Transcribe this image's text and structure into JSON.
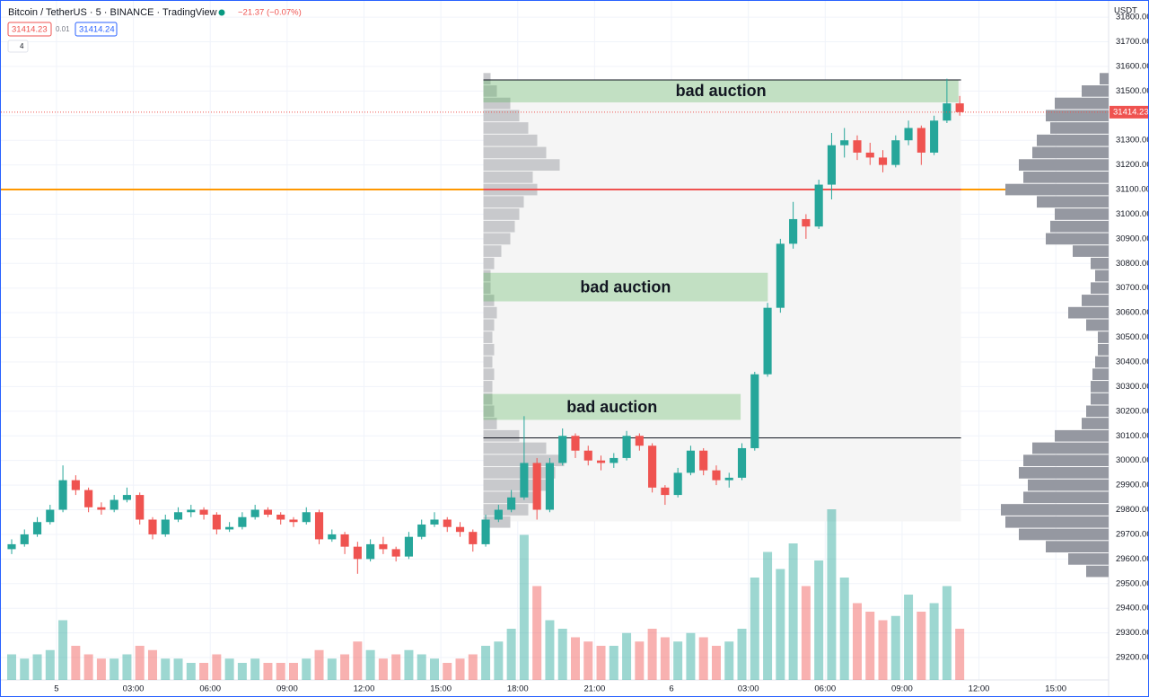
{
  "chart_data": {
    "type": "candlestick",
    "title": "Bitcoin / TetherUS · 5 · BINANCE · TradingView",
    "change": "−21.37 (−0.07%)",
    "bid": "31414.23",
    "spread": "0.01",
    "ask": "31414.24",
    "indicators": "4",
    "currency": "USDT",
    "last_price": 31414.23,
    "up_color": "#26a69a",
    "down_color": "#ef5350",
    "grid": true,
    "xlim": [
      -2.17,
      41.06
    ],
    "ylim": [
      29109,
      31866
    ],
    "xticks": [
      {
        "value": 0,
        "label": "5"
      },
      {
        "value": 3,
        "label": "03:00"
      },
      {
        "value": 6,
        "label": "06:00"
      },
      {
        "value": 9,
        "label": "09:00"
      },
      {
        "value": 12,
        "label": "12:00"
      },
      {
        "value": 15,
        "label": "15:00"
      },
      {
        "value": 18,
        "label": "18:00"
      },
      {
        "value": 21,
        "label": "21:00"
      },
      {
        "value": 24,
        "label": "6"
      },
      {
        "value": 27,
        "label": "03:00"
      },
      {
        "value": 30,
        "label": "06:00"
      },
      {
        "value": 33,
        "label": "09:00"
      },
      {
        "value": 36,
        "label": "12:00"
      },
      {
        "value": 39,
        "label": "15:00"
      }
    ],
    "yticks": [
      {
        "value": 29200,
        "label": "29200.00"
      },
      {
        "value": 29300,
        "label": "29300.00"
      },
      {
        "value": 29400,
        "label": "29400.00"
      },
      {
        "value": 29500,
        "label": "29500.00"
      },
      {
        "value": 29600,
        "label": "29600.00"
      },
      {
        "value": 29700,
        "label": "29700.00"
      },
      {
        "value": 29800,
        "label": "29800.00"
      },
      {
        "value": 29900,
        "label": "29900.00"
      },
      {
        "value": 30000,
        "label": "30000.00"
      },
      {
        "value": 30100,
        "label": "30100.00"
      },
      {
        "value": 30200,
        "label": "30200.00"
      },
      {
        "value": 30300,
        "label": "30300.00"
      },
      {
        "value": 30400,
        "label": "30400.00"
      },
      {
        "value": 30500,
        "label": "30500.00"
      },
      {
        "value": 30600,
        "label": "30600.00"
      },
      {
        "value": 30700,
        "label": "30700.00"
      },
      {
        "value": 30800,
        "label": "30800.00"
      },
      {
        "value": 30900,
        "label": "30900.00"
      },
      {
        "value": 31000,
        "label": "31000.00"
      },
      {
        "value": 31100,
        "label": "31100.00"
      },
      {
        "value": 31200,
        "label": "31200.00"
      },
      {
        "value": 31300,
        "label": "31300.00"
      },
      {
        "value": 31400,
        "label": "31400.00"
      },
      {
        "value": 31500,
        "label": "31500.00"
      },
      {
        "value": 31600,
        "label": "31600.00"
      },
      {
        "value": 31700,
        "label": "31700.00"
      },
      {
        "value": 31800,
        "label": "31800.00"
      }
    ],
    "x": [
      -1.75,
      -1.25,
      -0.75,
      -0.25,
      0.25,
      0.75,
      1.25,
      1.75,
      2.25,
      2.75,
      3.25,
      3.75,
      4.25,
      4.75,
      5.25,
      5.75,
      6.25,
      6.75,
      7.25,
      7.75,
      8.25,
      8.75,
      9.25,
      9.75,
      10.25,
      10.75,
      11.25,
      11.75,
      12.25,
      12.75,
      13.25,
      13.75,
      14.25,
      14.75,
      15.25,
      15.75,
      16.25,
      16.75,
      17.25,
      17.75,
      18.25,
      18.75,
      19.25,
      19.75,
      20.25,
      20.75,
      21.25,
      21.75,
      22.25,
      22.75,
      23.25,
      23.75,
      24.25,
      24.75,
      25.25,
      25.75,
      26.25,
      26.75,
      27.25,
      27.75,
      28.25,
      28.75,
      29.25,
      29.75,
      30.25,
      30.75,
      31.25,
      31.75,
      32.25,
      32.75,
      33.25,
      33.75,
      34.25,
      34.75,
      35.25
    ],
    "candles": [
      [
        29640,
        29680,
        29620,
        29660
      ],
      [
        29660,
        29720,
        29650,
        29700
      ],
      [
        29700,
        29770,
        29690,
        29750
      ],
      [
        29750,
        29820,
        29740,
        29800
      ],
      [
        29800,
        29980,
        29790,
        29920
      ],
      [
        29920,
        29940,
        29860,
        29880
      ],
      [
        29880,
        29890,
        29790,
        29810
      ],
      [
        29810,
        29830,
        29780,
        29800
      ],
      [
        29800,
        29860,
        29790,
        29840
      ],
      [
        29840,
        29890,
        29830,
        29860
      ],
      [
        29860,
        29870,
        29740,
        29760
      ],
      [
        29760,
        29770,
        29680,
        29700
      ],
      [
        29700,
        29780,
        29690,
        29760
      ],
      [
        29760,
        29810,
        29750,
        29790
      ],
      [
        29790,
        29820,
        29770,
        29800
      ],
      [
        29800,
        29810,
        29760,
        29780
      ],
      [
        29780,
        29790,
        29700,
        29720
      ],
      [
        29720,
        29750,
        29710,
        29730
      ],
      [
        29730,
        29790,
        29720,
        29770
      ],
      [
        29770,
        29820,
        29760,
        29800
      ],
      [
        29800,
        29810,
        29770,
        29780
      ],
      [
        29780,
        29790,
        29740,
        29760
      ],
      [
        29760,
        29770,
        29730,
        29750
      ],
      [
        29750,
        29810,
        29740,
        29790
      ],
      [
        29790,
        29800,
        29660,
        29680
      ],
      [
        29680,
        29720,
        29670,
        29700
      ],
      [
        29700,
        29710,
        29620,
        29650
      ],
      [
        29650,
        29670,
        29540,
        29600
      ],
      [
        29600,
        29680,
        29590,
        29660
      ],
      [
        29660,
        29690,
        29620,
        29640
      ],
      [
        29640,
        29650,
        29590,
        29610
      ],
      [
        29610,
        29710,
        29600,
        29690
      ],
      [
        29690,
        29760,
        29680,
        29740
      ],
      [
        29740,
        29790,
        29730,
        29760
      ],
      [
        29760,
        29770,
        29710,
        29730
      ],
      [
        29730,
        29750,
        29690,
        29710
      ],
      [
        29710,
        29720,
        29630,
        29660
      ],
      [
        29660,
        29780,
        29650,
        29760
      ],
      [
        29760,
        29820,
        29750,
        29800
      ],
      [
        29800,
        29880,
        29790,
        29850
      ],
      [
        29850,
        30180,
        29840,
        29990
      ],
      [
        29990,
        30010,
        29760,
        29800
      ],
      [
        29800,
        30010,
        29790,
        29990
      ],
      [
        29990,
        30130,
        29980,
        30100
      ],
      [
        30100,
        30110,
        30010,
        30040
      ],
      [
        30040,
        30060,
        29980,
        30000
      ],
      [
        30000,
        30020,
        29960,
        29990
      ],
      [
        29990,
        30030,
        29970,
        30010
      ],
      [
        30010,
        30120,
        30000,
        30100
      ],
      [
        30100,
        30110,
        30040,
        30060
      ],
      [
        30060,
        30070,
        29870,
        29890
      ],
      [
        29890,
        29900,
        29820,
        29860
      ],
      [
        29860,
        29970,
        29850,
        29950
      ],
      [
        29950,
        30060,
        29940,
        30040
      ],
      [
        30040,
        30050,
        29940,
        29960
      ],
      [
        29960,
        29980,
        29900,
        29920
      ],
      [
        29920,
        29950,
        29890,
        29930
      ],
      [
        29930,
        30070,
        29920,
        30050
      ],
      [
        30050,
        30360,
        30040,
        30350
      ],
      [
        30350,
        30640,
        30340,
        30620
      ],
      [
        30620,
        30900,
        30600,
        30880
      ],
      [
        30880,
        31050,
        30860,
        30980
      ],
      [
        30980,
        31000,
        30900,
        30950
      ],
      [
        30950,
        31140,
        30940,
        31120
      ],
      [
        31120,
        31330,
        31060,
        31280
      ],
      [
        31280,
        31350,
        31230,
        31300
      ],
      [
        31300,
        31320,
        31220,
        31250
      ],
      [
        31250,
        31290,
        31200,
        31230
      ],
      [
        31230,
        31260,
        31170,
        31200
      ],
      [
        31200,
        31320,
        31190,
        31300
      ],
      [
        31300,
        31380,
        31280,
        31350
      ],
      [
        31350,
        31360,
        31200,
        31250
      ],
      [
        31250,
        31400,
        31240,
        31380
      ],
      [
        31380,
        31550,
        31370,
        31450
      ],
      [
        31450,
        31480,
        31400,
        31414.23
      ]
    ],
    "volume": [
      30,
      25,
      30,
      35,
      70,
      40,
      30,
      25,
      25,
      30,
      40,
      35,
      25,
      25,
      20,
      20,
      30,
      25,
      20,
      25,
      20,
      20,
      20,
      25,
      35,
      25,
      30,
      45,
      35,
      25,
      30,
      35,
      30,
      25,
      20,
      25,
      30,
      40,
      45,
      60,
      170,
      110,
      70,
      60,
      50,
      45,
      40,
      40,
      55,
      45,
      60,
      50,
      45,
      55,
      50,
      40,
      45,
      60,
      120,
      150,
      130,
      160,
      110,
      140,
      200,
      120,
      90,
      80,
      70,
      75,
      100,
      80,
      90,
      110,
      60
    ],
    "profile": {
      "levels": [
        29550,
        29600,
        29650,
        29700,
        29750,
        29800,
        29850,
        29900,
        29950,
        30000,
        30050,
        30100,
        30150,
        30200,
        30250,
        30300,
        30350,
        30400,
        30450,
        30500,
        30550,
        30600,
        30650,
        30700,
        30750,
        30800,
        30850,
        30900,
        30950,
        31000,
        31050,
        31100,
        31150,
        31200,
        31250,
        31300,
        31350,
        31400,
        31450,
        31500,
        31550
      ],
      "volumes": [
        25,
        45,
        70,
        100,
        115,
        120,
        95,
        90,
        100,
        95,
        85,
        60,
        30,
        25,
        20,
        20,
        18,
        15,
        12,
        12,
        25,
        45,
        30,
        20,
        15,
        20,
        40,
        70,
        65,
        60,
        80,
        115,
        95,
        100,
        85,
        80,
        65,
        70,
        60,
        30,
        10
      ]
    },
    "range_profile": {
      "levels": [
        29750,
        29800,
        29850,
        29900,
        29950,
        30000,
        30050,
        30100,
        30150,
        30200,
        30250,
        30300,
        30350,
        30400,
        30450,
        30500,
        30550,
        30600,
        30650,
        30700,
        30750,
        30800,
        30850,
        30900,
        30950,
        31000,
        31050,
        31100,
        31150,
        31200,
        31250,
        31300,
        31350,
        31400,
        31450,
        31500,
        31550
      ],
      "volumes": [
        30,
        50,
        60,
        70,
        80,
        90,
        70,
        40,
        15,
        12,
        10,
        10,
        12,
        10,
        12,
        10,
        12,
        15,
        12,
        8,
        8,
        12,
        20,
        30,
        35,
        40,
        45,
        60,
        55,
        85,
        70,
        60,
        50,
        40,
        30,
        15,
        8
      ]
    },
    "range": {
      "x": [
        16.66,
        35.3
      ],
      "y": [
        29753,
        31545
      ]
    },
    "range_low_line": 30092,
    "level_line": {
      "value": 31100,
      "color": "#ff9800"
    },
    "annotations": [
      {
        "text": "bad auction",
        "x": [
          16.66,
          35.2
        ],
        "y": [
          31454,
          31545
        ]
      },
      {
        "text": "bad auction",
        "x": [
          16.66,
          27.76
        ],
        "y": [
          30646,
          30762
        ]
      },
      {
        "text": "bad auction",
        "x": [
          16.66,
          26.7
        ],
        "y": [
          30165,
          30270
        ]
      }
    ]
  }
}
